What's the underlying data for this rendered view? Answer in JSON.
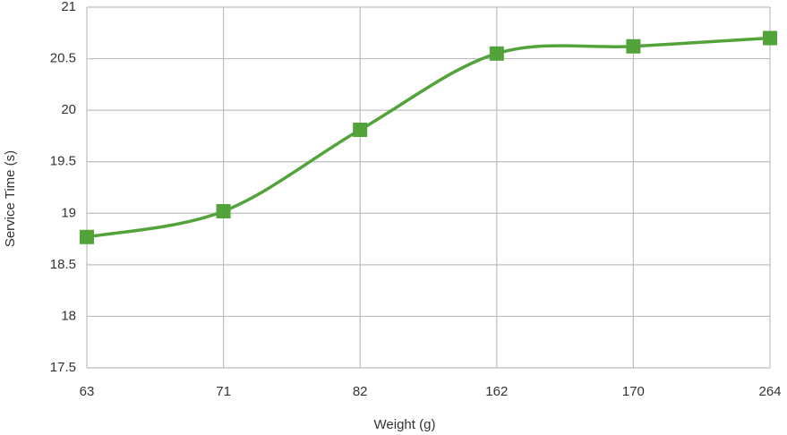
{
  "chart_data": {
    "type": "line",
    "x_label": "Weight (g)",
    "y_label": "Service Time (s)",
    "categories": [
      "63",
      "71",
      "82",
      "162",
      "170",
      "264"
    ],
    "series": [
      {
        "color": "#52a33a",
        "values": [
          18.77,
          19.02,
          19.81,
          20.55,
          20.62,
          20.7
        ]
      }
    ],
    "ylim": [
      17.5,
      21
    ],
    "yticks": [
      17.5,
      18,
      18.5,
      19,
      19.5,
      20,
      20.5,
      21
    ],
    "grid": true,
    "smooth": true,
    "marker": "square"
  }
}
